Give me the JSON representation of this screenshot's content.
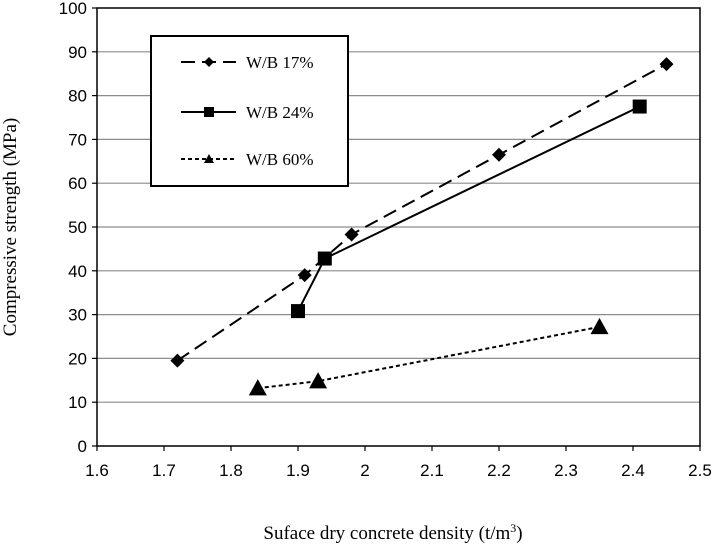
{
  "chart_data": {
    "type": "line",
    "xlabel": "Suface dry concrete density (t/m",
    "xlabel_sup": "3",
    "xlabel_close": ")",
    "ylabel": "Compressive strength (MPa)",
    "xlim": [
      1.6,
      2.5
    ],
    "ylim": [
      0,
      100
    ],
    "xticks": [
      1.6,
      1.7,
      1.8,
      1.9,
      2.0,
      2.1,
      2.2,
      2.3,
      2.4,
      2.5
    ],
    "xtick_labels": [
      "1.6",
      "1.7",
      "1.8",
      "1.9",
      "2",
      "2.1",
      "2.2",
      "2.3",
      "2.4",
      "2.5"
    ],
    "yticks": [
      0,
      10,
      20,
      30,
      40,
      50,
      60,
      70,
      80,
      90,
      100
    ],
    "ytick_labels": [
      "0",
      "10",
      "20",
      "30",
      "40",
      "50",
      "60",
      "70",
      "80",
      "90",
      "100"
    ],
    "grid": "horizontal",
    "legend_position": "top-left",
    "series": [
      {
        "name": "W/B 17%",
        "marker": "diamond",
        "line_style": "long-dash",
        "points": [
          [
            1.72,
            19.5
          ],
          [
            1.91,
            39.0
          ],
          [
            1.98,
            48.3
          ],
          [
            2.2,
            66.5
          ],
          [
            2.45,
            87.2
          ]
        ]
      },
      {
        "name": "W/B 24%",
        "marker": "square",
        "line_style": "solid",
        "points": [
          [
            1.9,
            30.8
          ],
          [
            1.94,
            42.8
          ],
          [
            2.41,
            77.5
          ]
        ]
      },
      {
        "name": "W/B 60%",
        "marker": "triangle",
        "line_style": "short-dash",
        "points": [
          [
            1.84,
            13.2
          ],
          [
            1.93,
            14.8
          ],
          [
            2.35,
            27.2
          ]
        ]
      }
    ]
  }
}
